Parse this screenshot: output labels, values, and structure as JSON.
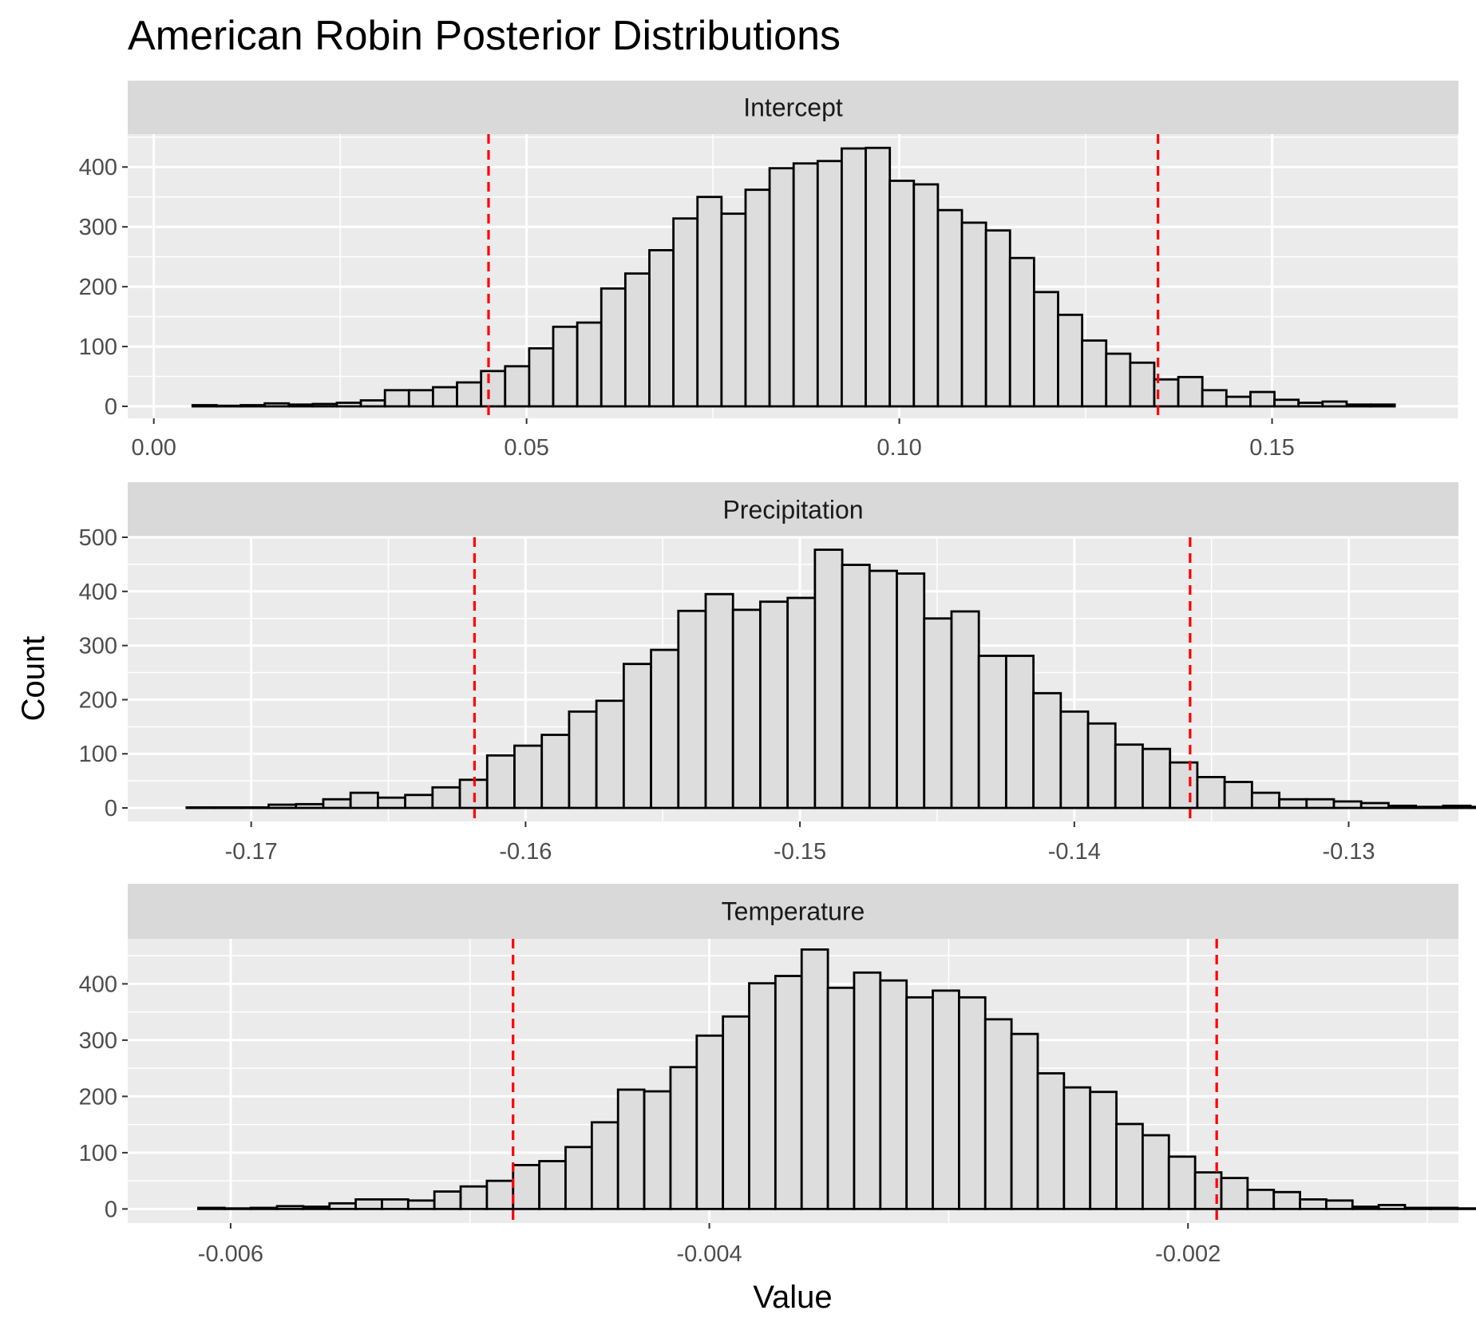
{
  "chart_data": {
    "type": "histogram",
    "title": "American Robin Posterior Distributions",
    "xlabel": "Value",
    "ylabel": "Count",
    "colors": {
      "panel_background": "#EBEBEB",
      "strip_background": "#D9D9D9",
      "bar_fill": "#DDDDDD",
      "bar_outline": "#000000",
      "interval_line": "#FF0000",
      "grid": "#FFFFFF"
    },
    "panels": [
      {
        "label": "Intercept",
        "x_range": [
          -0.0035,
          0.175
        ],
        "y_range": [
          -20,
          455
        ],
        "x_ticks": [
          0.0,
          0.05,
          0.1,
          0.15
        ],
        "x_tick_labels": [
          "0.00",
          "0.05",
          "0.10",
          "0.15"
        ],
        "y_ticks": [
          0,
          100,
          200,
          300,
          400
        ],
        "y_tick_labels": [
          "0",
          "100",
          "200",
          "300",
          "400"
        ],
        "bins": {
          "start": 0.0052,
          "width": 0.003225,
          "counts": [
            2,
            1,
            2,
            5,
            3,
            4,
            6,
            10,
            27,
            27,
            32,
            40,
            59,
            67,
            97,
            133,
            140,
            197,
            222,
            261,
            314,
            350,
            322,
            362,
            398,
            406,
            410,
            431,
            432,
            377,
            371,
            328,
            307,
            294,
            248,
            191,
            153,
            110,
            88,
            73,
            45,
            49,
            27,
            16,
            24,
            11,
            6,
            8,
            3,
            3
          ]
        },
        "interval_lines": [
          0.0449,
          0.1347
        ]
      },
      {
        "label": "Precipitation",
        "x_range": [
          -0.1745,
          -0.126
        ],
        "y_range": [
          -25,
          500
        ],
        "x_ticks": [
          -0.17,
          -0.16,
          -0.15,
          -0.14,
          -0.13
        ],
        "x_tick_labels": [
          "-0.17",
          "-0.16",
          "-0.15",
          "-0.14",
          "-0.13"
        ],
        "y_ticks": [
          0,
          100,
          200,
          300,
          400,
          500
        ],
        "y_tick_labels": [
          "0",
          "100",
          "200",
          "300",
          "400",
          "500"
        ],
        "bins": {
          "start": -0.17235,
          "width": 0.0009955,
          "counts": [
            1,
            1,
            1,
            6,
            7,
            16,
            28,
            19,
            24,
            38,
            52,
            97,
            115,
            135,
            178,
            198,
            266,
            292,
            364,
            395,
            366,
            381,
            388,
            477,
            449,
            438,
            433,
            350,
            363,
            281,
            281,
            212,
            178,
            156,
            117,
            109,
            84,
            57,
            48,
            28,
            16,
            16,
            12,
            9,
            4,
            2,
            4,
            2,
            2,
            3
          ]
        },
        "interval_lines": [
          -0.16186,
          -0.13578
        ]
      },
      {
        "label": "Temperature",
        "x_range": [
          -0.00643,
          -0.00087
        ],
        "y_range": [
          -25,
          480
        ],
        "x_ticks": [
          -0.006,
          -0.004,
          -0.002
        ],
        "x_tick_labels": [
          "-0.006",
          "-0.004",
          "-0.002"
        ],
        "y_ticks": [
          0,
          100,
          200,
          300,
          400
        ],
        "y_tick_labels": [
          "0",
          "100",
          "200",
          "300",
          "400"
        ],
        "bins": {
          "start": -0.006135,
          "width": 0.0001096,
          "counts": [
            2,
            1,
            2,
            5,
            4,
            10,
            17,
            17,
            15,
            31,
            40,
            50,
            78,
            85,
            110,
            154,
            212,
            209,
            252,
            308,
            342,
            401,
            414,
            461,
            393,
            420,
            406,
            376,
            388,
            376,
            337,
            311,
            241,
            216,
            208,
            151,
            131,
            93,
            65,
            55,
            34,
            30,
            17,
            15,
            4,
            7,
            2,
            2,
            1,
            2
          ]
        },
        "interval_lines": [
          -0.00482,
          -0.00188
        ]
      }
    ]
  }
}
